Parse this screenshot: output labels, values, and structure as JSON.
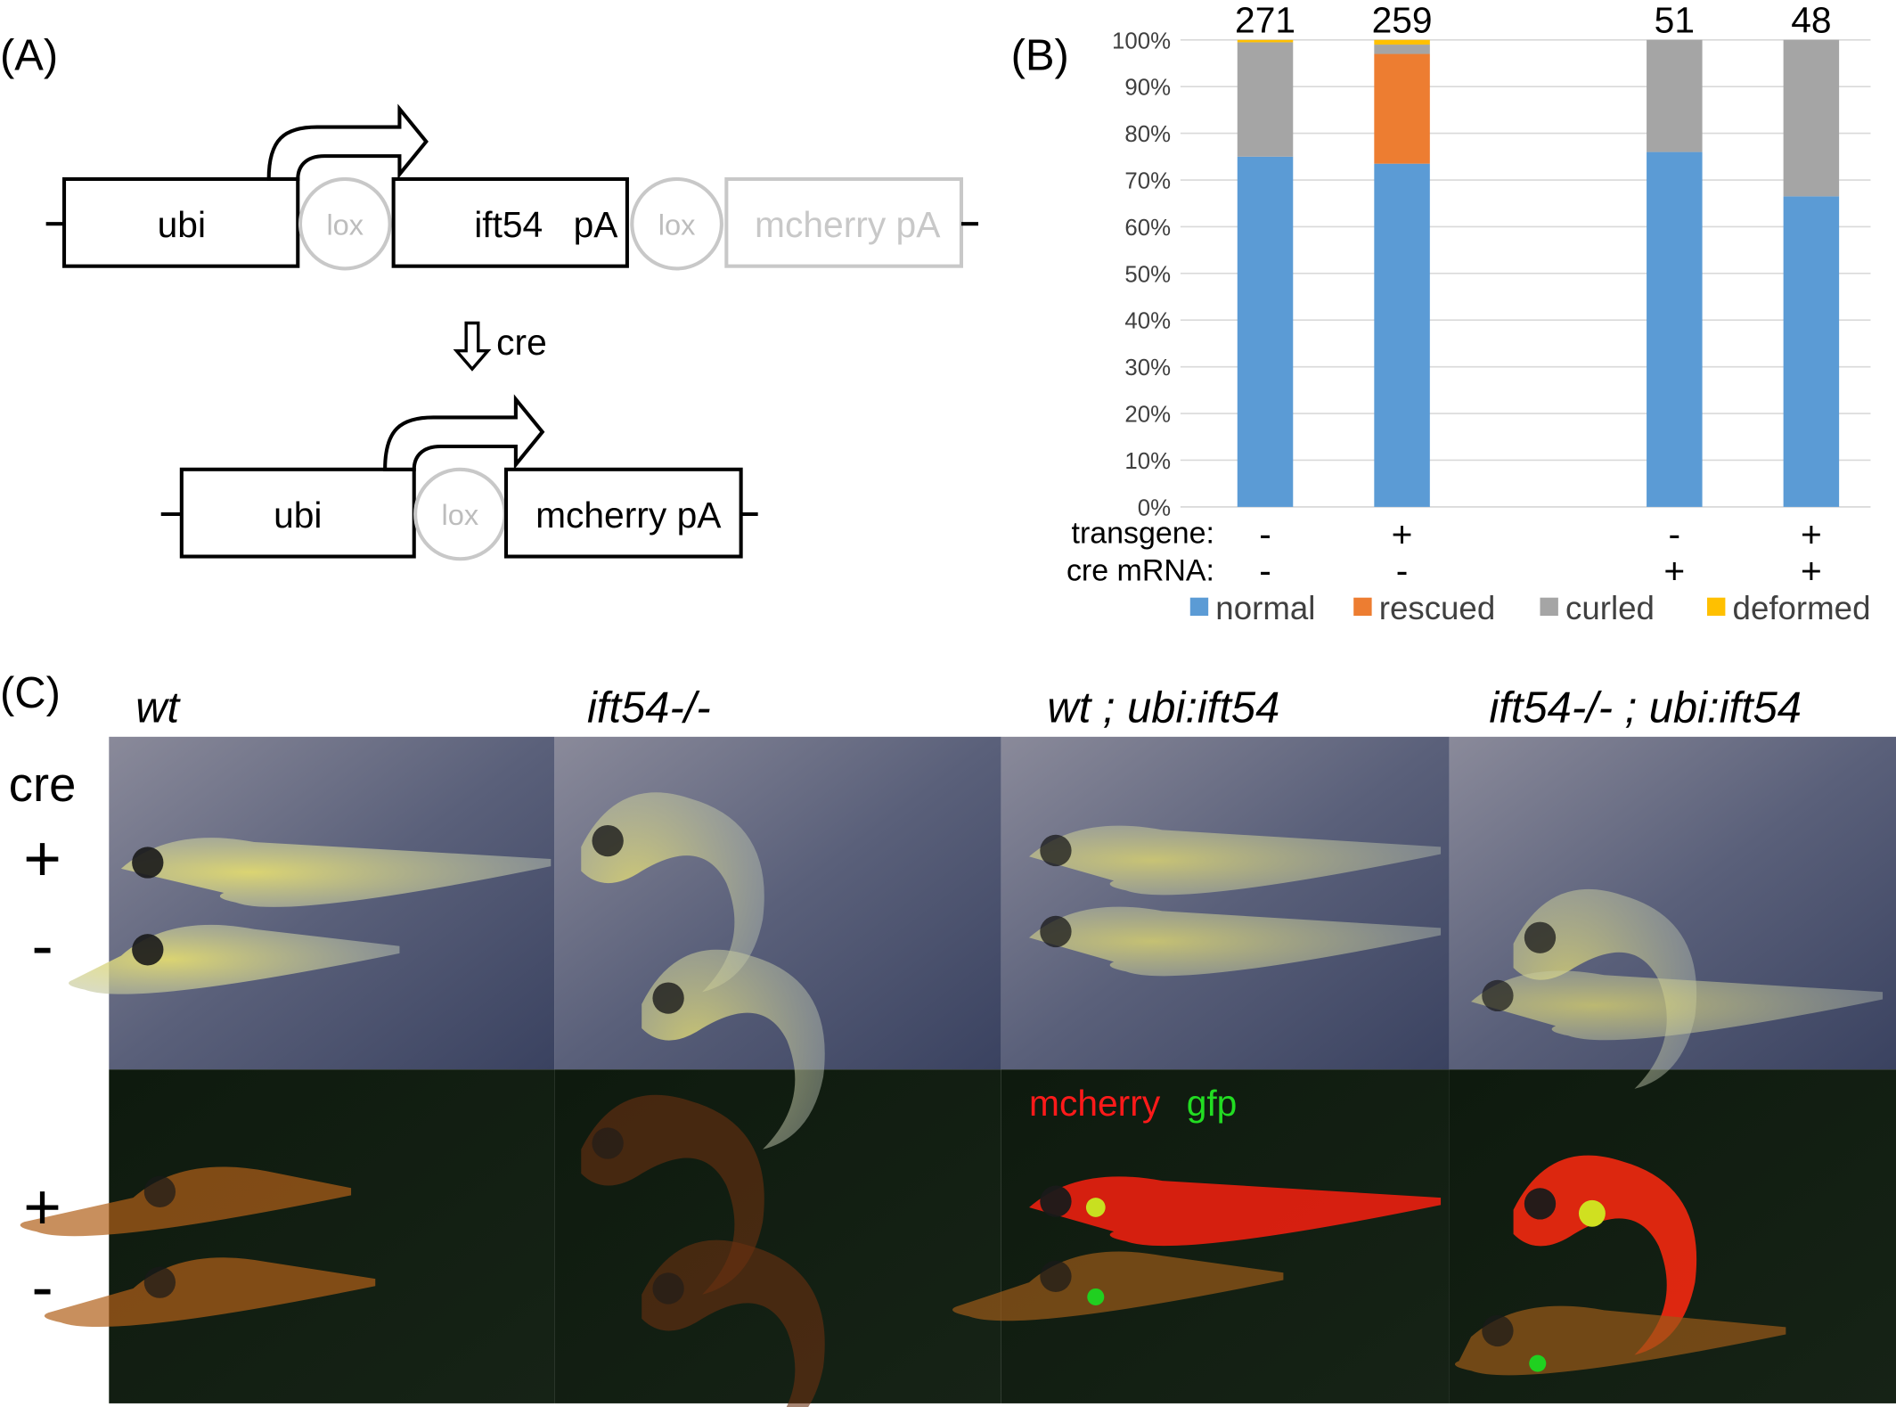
{
  "panel_a": {
    "label": "(A)",
    "construct_top": {
      "promoter": "ubi",
      "lox1": "lox",
      "gene": "ift54",
      "pa": "pA",
      "lox2": "lox",
      "reporter": "mcherry pA"
    },
    "recombinase": "cre",
    "construct_bottom": {
      "promoter": "ubi",
      "lox": "lox",
      "reporter": "mcherry pA"
    }
  },
  "panel_b": {
    "label": "(B)"
  },
  "chart_data": {
    "type": "bar",
    "stacked": true,
    "categories": [
      null,
      null,
      null,
      null
    ],
    "n": [
      271,
      259,
      51,
      48
    ],
    "conditions": [
      {
        "label": "transgene:",
        "values": [
          "-",
          "+",
          "-",
          "+"
        ]
      },
      {
        "label": "cre mRNA:",
        "values": [
          "-",
          "-",
          "+",
          "+"
        ]
      }
    ],
    "series": [
      {
        "name": "normal",
        "color": "#5b9bd5",
        "values": [
          75,
          73.5,
          76,
          66.5
        ]
      },
      {
        "name": "rescued",
        "color": "#ed7d31",
        "values": [
          0,
          23.5,
          0,
          0
        ]
      },
      {
        "name": "curled",
        "color": "#a5a5a5",
        "values": [
          24.5,
          2,
          24,
          33.5
        ]
      },
      {
        "name": "deformed",
        "color": "#ffc000",
        "values": [
          0.5,
          1,
          0,
          0
        ]
      }
    ],
    "ylim": [
      0,
      100
    ],
    "yticks": [
      {
        "value": 0,
        "label": "0%"
      },
      {
        "value": 10,
        "label": "10%"
      },
      {
        "value": 20,
        "label": "20%"
      },
      {
        "value": 30,
        "label": "30%"
      },
      {
        "value": 40,
        "label": "40%"
      },
      {
        "value": 50,
        "label": "50%"
      },
      {
        "value": 60,
        "label": "60%"
      },
      {
        "value": 70,
        "label": "70%"
      },
      {
        "value": 80,
        "label": "80%"
      },
      {
        "value": 90,
        "label": "90%"
      },
      {
        "value": 100,
        "label": "100%"
      }
    ],
    "grid": true,
    "legend": "bottom"
  },
  "panel_c": {
    "label": "(C)",
    "columns": [
      "wt",
      "ift54-/-",
      "wt ; ubi:ift54",
      "ift54-/- ; ubi:ift54"
    ],
    "row_label": "cre",
    "rows": [
      "+",
      "-",
      "+",
      "-"
    ],
    "overlay": {
      "mcherry": "mcherry",
      "gfp": "gfp"
    }
  }
}
